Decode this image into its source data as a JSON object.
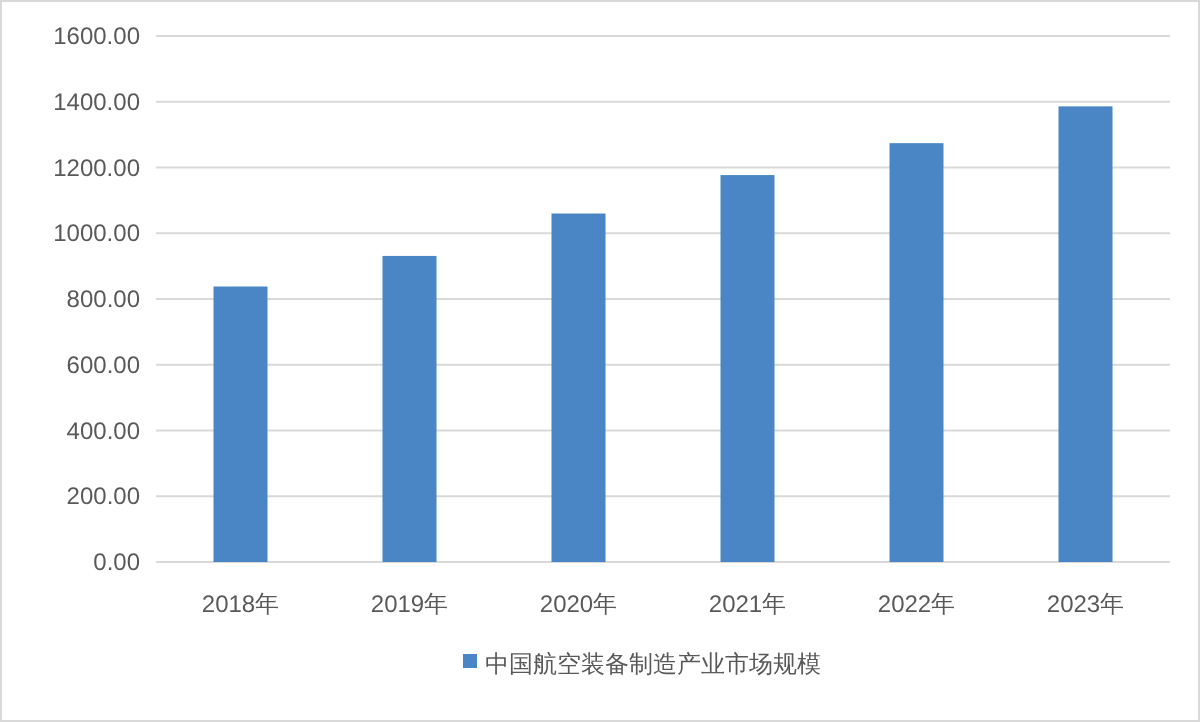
{
  "chart_data": {
    "type": "bar",
    "categories": [
      "2018年",
      "2019年",
      "2020年",
      "2021年",
      "2022年",
      "2023年"
    ],
    "series": [
      {
        "name": "中国航空装备制造产业市场规模",
        "color": "#4a86c5",
        "values": [
          838,
          931,
          1060,
          1177,
          1274,
          1386
        ]
      }
    ],
    "ylim": [
      0,
      1600
    ],
    "yticks": [
      {
        "value": 0,
        "label": "0.00"
      },
      {
        "value": 200,
        "label": "200.00"
      },
      {
        "value": 400,
        "label": "400.00"
      },
      {
        "value": 600,
        "label": "600.00"
      },
      {
        "value": 800,
        "label": "800.00"
      },
      {
        "value": 1000,
        "label": "1000.00"
      },
      {
        "value": 1200,
        "label": "1200.00"
      },
      {
        "value": 1400,
        "label": "1400.00"
      },
      {
        "value": 1600,
        "label": "1600.00"
      }
    ],
    "grid": "y",
    "legend": "bottom"
  }
}
